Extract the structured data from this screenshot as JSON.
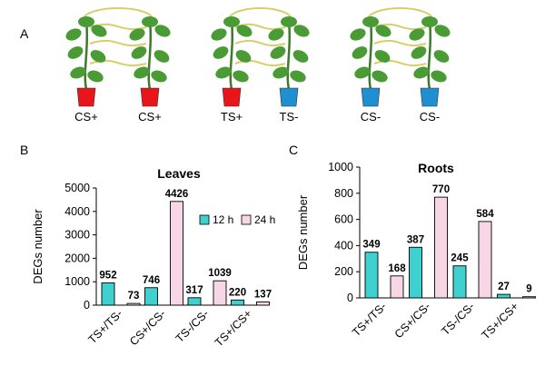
{
  "panel_a": {
    "label": "A",
    "pairs": [
      {
        "pots": [
          {
            "label": "CS+",
            "color": "#e8161b"
          },
          {
            "label": "CS+",
            "color": "#e8161b"
          }
        ]
      },
      {
        "pots": [
          {
            "label": "TS+",
            "color": "#e8161b"
          },
          {
            "label": "TS-",
            "color": "#1e8fd0"
          }
        ]
      },
      {
        "pots": [
          {
            "label": "CS-",
            "color": "#1e8fd0"
          },
          {
            "label": "CS-",
            "color": "#1e8fd0"
          }
        ]
      }
    ]
  },
  "colors": {
    "bar_12h": "#3fd1cf",
    "bar_24h": "#f7d6e6",
    "plant": "#4a9a36",
    "stem": "#3d7a2a",
    "tendril": "#d8cf6a"
  },
  "chart_data": [
    {
      "type": "bar",
      "panel": "B",
      "title": "Leaves",
      "xlabel": "",
      "ylabel": "DEGs number",
      "ylim": [
        0,
        5000
      ],
      "yticks": [
        0,
        1000,
        2000,
        3000,
        4000,
        5000
      ],
      "categories": [
        "TS+/TS-",
        "CS+/CS-",
        "TS-/CS-",
        "TS+/CS+"
      ],
      "legend": {
        "position": "top-right",
        "entries": [
          "12 h",
          "24 h"
        ]
      },
      "series": [
        {
          "name": "12 h",
          "values": [
            952,
            746,
            317,
            220
          ]
        },
        {
          "name": "24 h",
          "values": [
            73,
            4426,
            1039,
            137
          ]
        }
      ]
    },
    {
      "type": "bar",
      "panel": "C",
      "title": "Roots",
      "xlabel": "",
      "ylabel": "DEGs number",
      "ylim": [
        0,
        1000
      ],
      "yticks": [
        0,
        200,
        400,
        600,
        800,
        1000
      ],
      "categories": [
        "TS+/TS-",
        "CS+/CS-",
        "TS-/CS-",
        "TS+/CS+"
      ],
      "series": [
        {
          "name": "12 h",
          "values": [
            349,
            387,
            245,
            27
          ]
        },
        {
          "name": "24 h",
          "values": [
            168,
            770,
            584,
            9
          ]
        }
      ]
    }
  ]
}
